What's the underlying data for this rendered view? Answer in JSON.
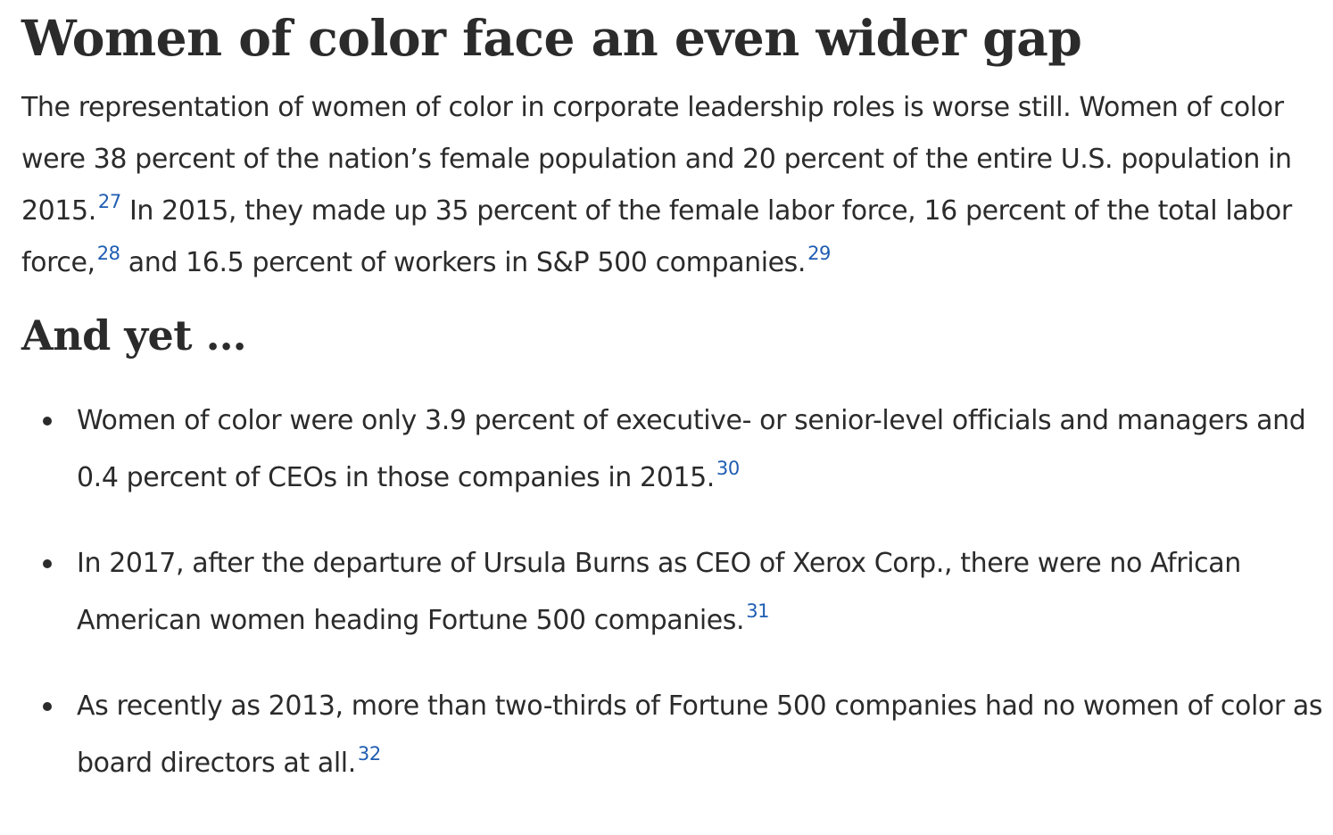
{
  "heading": "Women of color face an even wider gap",
  "intro": {
    "part1": "The representation of women of color in corporate leadership roles is worse still. Women of color were 38 percent of the nation’s female population and 20 percent of the entire U.S. population in 2015.",
    "fn1": "27",
    "part2": " In 2015, they made up 35 percent of the female labor force, 16 percent of the total labor force,",
    "fn2": "28",
    "part3": " and 16.5 percent of workers in S&P 500 companies.",
    "fn3": "29"
  },
  "subheading": "And yet …",
  "bullets": [
    {
      "text": "Women of color were only 3.9 percent of executive- or senior-level officials and managers and 0.4 percent of CEOs in those companies in 2015.",
      "footnote": "30"
    },
    {
      "text": "In 2017, after the departure of Ursula Burns as CEO of Xerox Corp., there were no African American women heading Fortune 500 companies.",
      "footnote": "31"
    },
    {
      "text": "As recently as 2013, more than two-thirds of Fortune 500 companies had no women of color as board directors at all.",
      "footnote": "32"
    }
  ],
  "colors": {
    "text": "#2b2b2b",
    "footnote_link": "#1f5db2",
    "background": "#ffffff"
  }
}
